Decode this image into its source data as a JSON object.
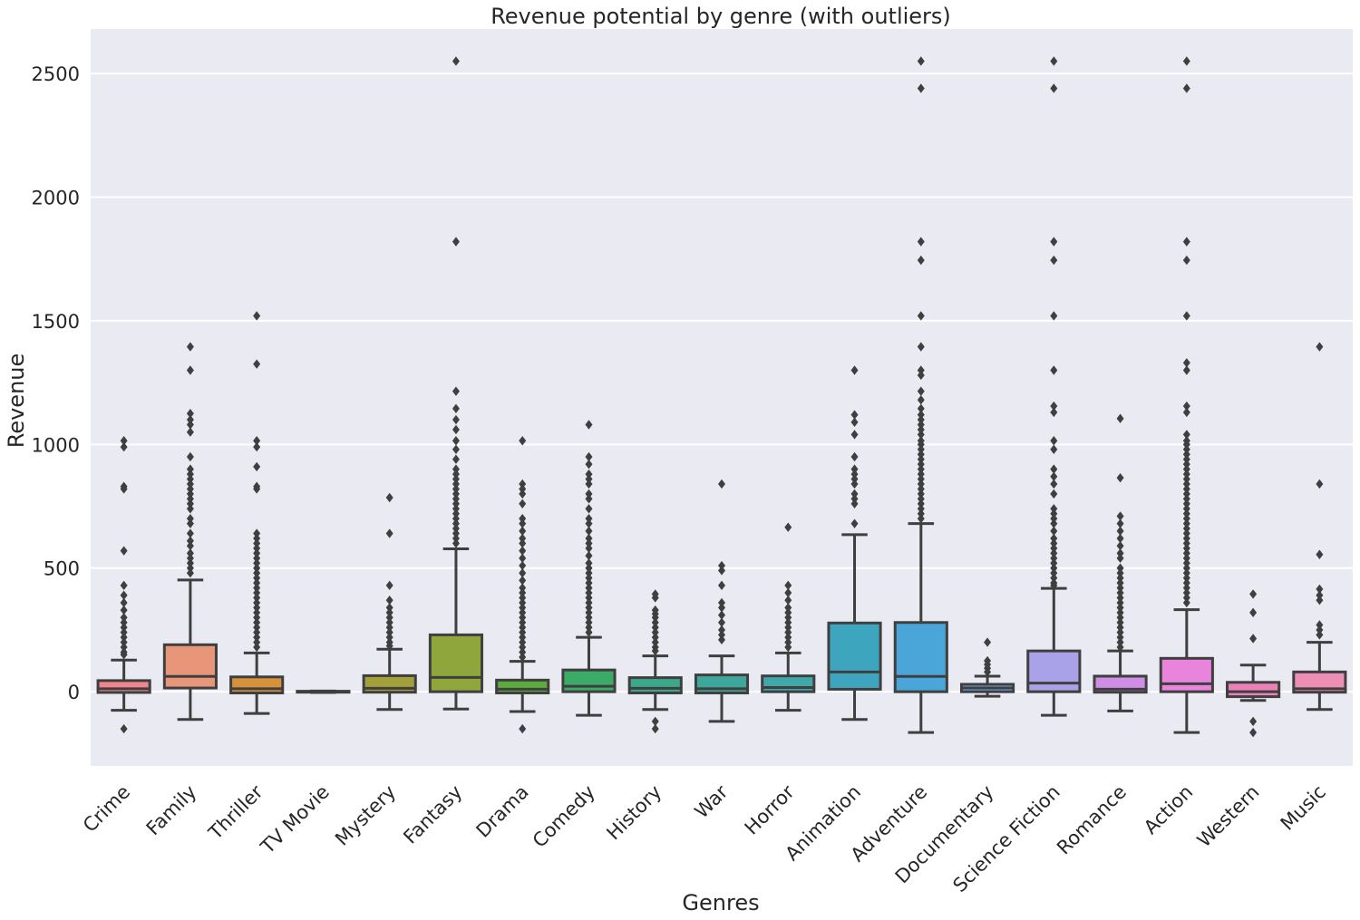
{
  "chart_data": {
    "type": "box",
    "title": "Revenue potential by genre (with outliers)",
    "xlabel": "Genres",
    "ylabel": "Revenue",
    "ylim": [
      -300,
      2680
    ],
    "yticks": [
      0,
      500,
      1000,
      1500,
      2000,
      2500
    ],
    "grid": true,
    "background": "#eaeaf2",
    "gridColor": "#ffffff",
    "lineColor": "#3f3f3f",
    "categories": [
      "Crime",
      "Family",
      "Thriller",
      "TV Movie",
      "Mystery",
      "Fantasy",
      "Drama",
      "Comedy",
      "History",
      "War",
      "Horror",
      "Animation",
      "Adventure",
      "Documentary",
      "Science Fiction",
      "Romance",
      "Action",
      "Western",
      "Music"
    ],
    "series": [
      {
        "color": "#f0868d",
        "q1": -3,
        "median": 12,
        "q3": 45,
        "whisker_low": -75,
        "whisker_high": 128,
        "outliers": [
          -150,
          1015,
          990,
          830,
          820,
          570,
          430,
          390,
          360,
          330,
          300,
          280,
          260,
          240,
          220,
          200,
          180,
          160,
          150
        ]
      },
      {
        "color": "#e8967a",
        "q1": 15,
        "median": 62,
        "q3": 190,
        "whisker_low": -112,
        "whisker_high": 452,
        "outliers": [
          1395,
          1300,
          1125,
          1100,
          1080,
          1050,
          950,
          900,
          880,
          860,
          840,
          820,
          800,
          780,
          760,
          740,
          700,
          680,
          640,
          610,
          590,
          560,
          540,
          520,
          500,
          480
        ]
      },
      {
        "color": "#d5913c",
        "q1": -5,
        "median": 12,
        "q3": 60,
        "whisker_low": -88,
        "whisker_high": 157,
        "outliers": [
          1520,
          1325,
          1015,
          990,
          910,
          830,
          820,
          640,
          620,
          600,
          580,
          560,
          540,
          520,
          500,
          480,
          460,
          440,
          420,
          400,
          380,
          360,
          340,
          320,
          300,
          280,
          260,
          240,
          220,
          200,
          180
        ]
      },
      {
        "color": "#b3993a",
        "q1": -2,
        "median": 0,
        "q3": 2,
        "whisker_low": -3,
        "whisker_high": 3,
        "outliers": []
      },
      {
        "color": "#a3a03b",
        "q1": -2,
        "median": 14,
        "q3": 65,
        "whisker_low": -72,
        "whisker_high": 172,
        "outliers": [
          785,
          640,
          430,
          370,
          340,
          320,
          300,
          280,
          260,
          240,
          220,
          200,
          185
        ]
      },
      {
        "color": "#8fa63c",
        "q1": 0,
        "median": 58,
        "q3": 230,
        "whisker_low": -70,
        "whisker_high": 578,
        "outliers": [
          2550,
          1820,
          1215,
          1145,
          1100,
          1060,
          1015,
          980,
          940,
          900,
          880,
          860,
          840,
          820,
          800,
          780,
          760,
          740,
          720,
          700,
          680,
          660,
          640,
          620,
          600
        ]
      },
      {
        "color": "#5cac3d",
        "q1": -5,
        "median": 10,
        "q3": 47,
        "whisker_low": -80,
        "whisker_high": 123,
        "outliers": [
          -150,
          1015,
          840,
          820,
          800,
          760,
          700,
          680,
          650,
          620,
          600,
          570,
          540,
          510,
          480,
          450,
          420,
          400,
          380,
          360,
          340,
          320,
          300,
          280,
          260,
          240,
          220,
          200,
          180,
          160,
          140
        ]
      },
      {
        "color": "#3dab68",
        "q1": 0,
        "median": 22,
        "q3": 88,
        "whisker_low": -95,
        "whisker_high": 220,
        "outliers": [
          1080,
          950,
          920,
          880,
          860,
          840,
          800,
          780,
          740,
          700,
          680,
          650,
          620,
          600,
          580,
          550,
          520,
          500,
          480,
          460,
          440,
          420,
          400,
          380,
          360,
          340,
          320,
          300,
          280,
          260,
          240
        ]
      },
      {
        "color": "#3ca88b",
        "q1": -5,
        "median": 14,
        "q3": 57,
        "whisker_low": -72,
        "whisker_high": 145,
        "outliers": [
          -120,
          -150,
          395,
          380,
          330,
          315,
          300,
          280,
          260,
          240,
          220,
          200,
          180,
          165
        ]
      },
      {
        "color": "#3ea79b",
        "q1": -5,
        "median": 12,
        "q3": 68,
        "whisker_low": -120,
        "whisker_high": 145,
        "outliers": [
          840,
          510,
          490,
          430,
          360,
          340,
          310,
          280,
          250,
          230,
          210
        ]
      },
      {
        "color": "#3ea8ab",
        "q1": 0,
        "median": 17,
        "q3": 64,
        "whisker_low": -75,
        "whisker_high": 157,
        "outliers": [
          665,
          430,
          400,
          370,
          340,
          320,
          300,
          280,
          260,
          240,
          220,
          200,
          180
        ]
      },
      {
        "color": "#3ea5bf",
        "q1": 10,
        "median": 80,
        "q3": 278,
        "whisker_low": -112,
        "whisker_high": 635,
        "outliers": [
          1300,
          1120,
          1090,
          1040,
          950,
          900,
          880,
          860,
          840,
          800,
          780,
          760,
          680
        ]
      },
      {
        "color": "#4aa6d9",
        "q1": 0,
        "median": 62,
        "q3": 280,
        "whisker_low": -165,
        "whisker_high": 680,
        "outliers": [
          2550,
          2440,
          1820,
          1745,
          1520,
          1395,
          1300,
          1280,
          1215,
          1180,
          1145,
          1120,
          1100,
          1080,
          1060,
          1040,
          1015,
          1000,
          980,
          960,
          940,
          920,
          900,
          880,
          860,
          840,
          820,
          800,
          780,
          760,
          740,
          720,
          700
        ]
      },
      {
        "color": "#6f9fe0",
        "q1": 0,
        "median": 15,
        "q3": 30,
        "whisker_low": -18,
        "whisker_high": 63,
        "outliers": [
          200,
          125,
          110,
          95,
          80
        ]
      },
      {
        "color": "#a9a2e8",
        "q1": 0,
        "median": 35,
        "q3": 165,
        "whisker_low": -95,
        "whisker_high": 418,
        "outliers": [
          2550,
          2440,
          1820,
          1745,
          1520,
          1300,
          1155,
          1130,
          1015,
          980,
          900,
          870,
          840,
          800,
          740,
          720,
          700,
          680,
          650,
          620,
          600,
          580,
          560,
          540,
          520,
          500,
          480,
          460,
          440,
          430
        ]
      },
      {
        "color": "#cf8de6",
        "q1": -2,
        "median": 10,
        "q3": 63,
        "whisker_low": -78,
        "whisker_high": 165,
        "outliers": [
          1105,
          865,
          710,
          680,
          650,
          620,
          590,
          560,
          540,
          500,
          480,
          460,
          440,
          420,
          400,
          380,
          360,
          340,
          320,
          300,
          280,
          260,
          240,
          220,
          200,
          180
        ]
      },
      {
        "color": "#e884dc",
        "q1": 0,
        "median": 32,
        "q3": 135,
        "whisker_low": -165,
        "whisker_high": 332,
        "outliers": [
          2550,
          2440,
          1820,
          1745,
          1520,
          1330,
          1300,
          1155,
          1130,
          1040,
          1015,
          1000,
          980,
          960,
          940,
          920,
          900,
          880,
          860,
          840,
          820,
          800,
          780,
          760,
          740,
          720,
          700,
          680,
          660,
          640,
          620,
          600,
          580,
          560,
          540,
          520,
          500,
          480,
          460,
          440,
          420,
          400,
          380,
          360
        ]
      },
      {
        "color": "#ea82b9",
        "q1": -20,
        "median": 0,
        "q3": 38,
        "whisker_low": -35,
        "whisker_high": 108,
        "outliers": [
          -165,
          -120,
          395,
          320,
          215
        ]
      },
      {
        "color": "#ed8fb5",
        "q1": -2,
        "median": 12,
        "q3": 80,
        "whisker_low": -72,
        "whisker_high": 200,
        "outliers": [
          1395,
          840,
          555,
          415,
          390,
          370,
          270,
          250,
          230
        ]
      }
    ]
  }
}
